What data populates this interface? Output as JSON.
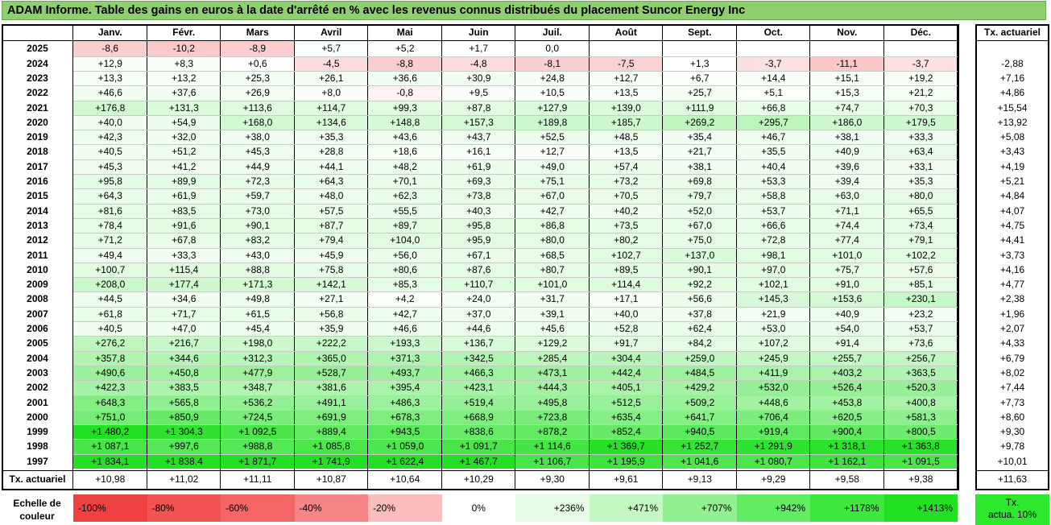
{
  "title": "ADAM Informe. Table des gains en euros à la date d'arrêté en % avec les revenus connus distribués du placement Suncor Energy Inc",
  "months": [
    "Janv.",
    "Févr.",
    "Mars",
    "Avril",
    "Mai",
    "Juin",
    "Juil.",
    "Août",
    "Sept.",
    "Oct.",
    "Nov.",
    "Déc."
  ],
  "tx_header": "Tx. actuariel",
  "rows": [
    {
      "year": "2025",
      "values": [
        "-8,6",
        "-10,2",
        "-8,9",
        "+5,7",
        "+5,2",
        "+1,7",
        "0,0",
        "",
        "",
        "",
        "",
        ""
      ],
      "tx": ""
    },
    {
      "year": "2024",
      "values": [
        "+12,9",
        "+8,3",
        "+0,6",
        "-4,5",
        "-8,8",
        "-4,8",
        "-8,1",
        "-7,5",
        "+1,3",
        "-3,7",
        "-11,1",
        "-3,7"
      ],
      "tx": "-2,88"
    },
    {
      "year": "2023",
      "values": [
        "+13,3",
        "+13,2",
        "+25,3",
        "+26,1",
        "+36,6",
        "+30,9",
        "+24,8",
        "+12,7",
        "+6,7",
        "+14,4",
        "+15,1",
        "+19,2"
      ],
      "tx": "+7,16"
    },
    {
      "year": "2022",
      "values": [
        "+46,6",
        "+37,6",
        "+26,9",
        "+8,0",
        "-0,8",
        "+9,5",
        "+10,5",
        "+13,5",
        "+25,7",
        "+5,1",
        "+15,3",
        "+21,2"
      ],
      "tx": "+4,86"
    },
    {
      "year": "2021",
      "values": [
        "+176,8",
        "+131,3",
        "+113,6",
        "+114,7",
        "+99,3",
        "+87,8",
        "+127,9",
        "+139,0",
        "+111,9",
        "+66,8",
        "+74,7",
        "+70,3"
      ],
      "tx": "+15,54"
    },
    {
      "year": "2020",
      "values": [
        "+40,0",
        "+54,9",
        "+168,0",
        "+134,6",
        "+148,8",
        "+157,3",
        "+189,8",
        "+185,7",
        "+269,2",
        "+295,7",
        "+186,0",
        "+179,5"
      ],
      "tx": "+13,92"
    },
    {
      "year": "2019",
      "values": [
        "+42,3",
        "+32,0",
        "+38,0",
        "+35,3",
        "+43,6",
        "+43,7",
        "+52,5",
        "+48,5",
        "+35,4",
        "+46,7",
        "+38,1",
        "+33,3"
      ],
      "tx": "+5,08"
    },
    {
      "year": "2018",
      "values": [
        "+40,5",
        "+51,2",
        "+45,3",
        "+28,8",
        "+18,6",
        "+16,1",
        "+12,7",
        "+13,5",
        "+21,7",
        "+35,5",
        "+40,9",
        "+63,4"
      ],
      "tx": "+3,43"
    },
    {
      "year": "2017",
      "values": [
        "+45,3",
        "+41,2",
        "+44,9",
        "+44,1",
        "+48,2",
        "+61,9",
        "+49,0",
        "+57,4",
        "+38,1",
        "+40,4",
        "+39,6",
        "+33,1"
      ],
      "tx": "+4,19"
    },
    {
      "year": "2016",
      "values": [
        "+95,8",
        "+89,9",
        "+72,3",
        "+64,3",
        "+70,1",
        "+69,3",
        "+75,1",
        "+73,2",
        "+69,8",
        "+53,3",
        "+39,4",
        "+35,3"
      ],
      "tx": "+5,21"
    },
    {
      "year": "2015",
      "values": [
        "+64,3",
        "+61,9",
        "+59,7",
        "+48,0",
        "+62,3",
        "+73,8",
        "+67,0",
        "+70,5",
        "+79,7",
        "+58,8",
        "+63,0",
        "+80,0"
      ],
      "tx": "+4,84"
    },
    {
      "year": "2014",
      "values": [
        "+81,6",
        "+83,5",
        "+73,0",
        "+57,5",
        "+55,5",
        "+40,3",
        "+42,7",
        "+40,2",
        "+52,0",
        "+53,7",
        "+71,1",
        "+65,5"
      ],
      "tx": "+4,07"
    },
    {
      "year": "2013",
      "values": [
        "+78,4",
        "+91,6",
        "+90,1",
        "+87,7",
        "+89,7",
        "+95,8",
        "+86,8",
        "+73,5",
        "+67,0",
        "+66,6",
        "+74,4",
        "+73,4"
      ],
      "tx": "+4,75"
    },
    {
      "year": "2012",
      "values": [
        "+71,2",
        "+67,8",
        "+83,2",
        "+79,4",
        "+104,0",
        "+95,9",
        "+80,0",
        "+80,2",
        "+75,0",
        "+72,8",
        "+77,4",
        "+79,1"
      ],
      "tx": "+4,41"
    },
    {
      "year": "2011",
      "values": [
        "+49,4",
        "+33,3",
        "+43,0",
        "+45,9",
        "+56,0",
        "+67,1",
        "+68,5",
        "+102,7",
        "+137,0",
        "+98,1",
        "+101,0",
        "+102,2"
      ],
      "tx": "+3,73"
    },
    {
      "year": "2010",
      "values": [
        "+100,7",
        "+115,4",
        "+88,8",
        "+75,8",
        "+80,6",
        "+87,6",
        "+80,7",
        "+89,5",
        "+90,1",
        "+97,0",
        "+75,7",
        "+57,6"
      ],
      "tx": "+4,16"
    },
    {
      "year": "2009",
      "values": [
        "+208,0",
        "+177,4",
        "+171,3",
        "+142,1",
        "+85,3",
        "+110,7",
        "+101,0",
        "+114,4",
        "+92,2",
        "+102,1",
        "+91,0",
        "+85,1"
      ],
      "tx": "+4,77"
    },
    {
      "year": "2008",
      "values": [
        "+44,5",
        "+34,6",
        "+49,8",
        "+27,1",
        "+4,2",
        "+24,0",
        "+31,7",
        "+17,1",
        "+56,6",
        "+145,3",
        "+153,6",
        "+230,1"
      ],
      "tx": "+2,38"
    },
    {
      "year": "2007",
      "values": [
        "+61,8",
        "+71,7",
        "+61,5",
        "+56,8",
        "+42,7",
        "+37,0",
        "+39,1",
        "+40,0",
        "+37,8",
        "+21,9",
        "+40,9",
        "+23,2"
      ],
      "tx": "+1,96"
    },
    {
      "year": "2006",
      "values": [
        "+40,5",
        "+47,0",
        "+45,4",
        "+35,9",
        "+46,6",
        "+44,6",
        "+45,6",
        "+52,8",
        "+62,4",
        "+53,0",
        "+54,0",
        "+53,7"
      ],
      "tx": "+2,07"
    },
    {
      "year": "2005",
      "values": [
        "+276,2",
        "+216,7",
        "+198,0",
        "+222,2",
        "+193,3",
        "+136,7",
        "+129,2",
        "+91,7",
        "+84,2",
        "+107,2",
        "+91,4",
        "+73,6"
      ],
      "tx": "+4,33"
    },
    {
      "year": "2004",
      "values": [
        "+357,8",
        "+344,6",
        "+312,3",
        "+365,0",
        "+371,3",
        "+342,5",
        "+285,4",
        "+304,4",
        "+259,0",
        "+245,9",
        "+255,7",
        "+256,7"
      ],
      "tx": "+6,79"
    },
    {
      "year": "2003",
      "values": [
        "+490,6",
        "+450,8",
        "+477,9",
        "+528,7",
        "+493,7",
        "+466,3",
        "+473,1",
        "+442,4",
        "+484,5",
        "+411,9",
        "+403,2",
        "+363,5"
      ],
      "tx": "+8,02"
    },
    {
      "year": "2002",
      "values": [
        "+422,3",
        "+383,5",
        "+348,7",
        "+381,6",
        "+395,4",
        "+423,1",
        "+444,3",
        "+405,1",
        "+429,2",
        "+532,0",
        "+526,4",
        "+520,3"
      ],
      "tx": "+7,44"
    },
    {
      "year": "2001",
      "values": [
        "+648,3",
        "+565,8",
        "+536,2",
        "+491,1",
        "+486,3",
        "+519,4",
        "+495,8",
        "+512,5",
        "+509,2",
        "+448,6",
        "+453,8",
        "+400,8"
      ],
      "tx": "+7,73"
    },
    {
      "year": "2000",
      "values": [
        "+751,0",
        "+850,9",
        "+724,5",
        "+691,9",
        "+678,3",
        "+668,9",
        "+723,8",
        "+635,4",
        "+641,7",
        "+706,4",
        "+620,5",
        "+581,3"
      ],
      "tx": "+8,60"
    },
    {
      "year": "1999",
      "values": [
        "+1 480,2",
        "+1 304,3",
        "+1 092,5",
        "+889,4",
        "+943,5",
        "+838,6",
        "+878,2",
        "+852,4",
        "+940,5",
        "+919,4",
        "+900,4",
        "+800,5"
      ],
      "tx": "+9,30"
    },
    {
      "year": "1998",
      "values": [
        "+1 087,1",
        "+997,6",
        "+988,8",
        "+1 085,8",
        "+1 059,0",
        "+1 091,7",
        "+1 114,6",
        "+1 369,7",
        "+1 252,7",
        "+1 291,9",
        "+1 318,1",
        "+1 363,8"
      ],
      "tx": "+9,78"
    },
    {
      "year": "1997",
      "values": [
        "+1 834,1",
        "+1 838,4",
        "+1 871,7",
        "+1 741,9",
        "+1 622,4",
        "+1 467,7",
        "+1 106,7",
        "+1 195,9",
        "+1 041,6",
        "+1 080,7",
        "+1 162,1",
        "+1 091,5"
      ],
      "tx": "+10,01"
    }
  ],
  "footer": {
    "label": "Tx. actuariel",
    "values": [
      "+10,98",
      "+11,02",
      "+11,11",
      "+10,87",
      "+10,64",
      "+10,29",
      "+9,30",
      "+9,61",
      "+9,13",
      "+9,29",
      "+9,58",
      "+9,38"
    ],
    "tx": "+11,63"
  },
  "legend": {
    "label_line1": "Echelle de",
    "label_line2": "couleur",
    "items": [
      {
        "text": "-100%",
        "color": "#f04141",
        "align": "left"
      },
      {
        "text": "-80%",
        "color": "#f25252",
        "align": "left"
      },
      {
        "text": "-60%",
        "color": "#f46666",
        "align": "left"
      },
      {
        "text": "-40%",
        "color": "#f78585",
        "align": "left"
      },
      {
        "text": "-20%",
        "color": "#fbbcbc",
        "align": "left"
      },
      {
        "text": "0%",
        "color": "#ffffff",
        "align": "center"
      },
      {
        "text": "+236%",
        "color": "#e6fce6",
        "align": "right"
      },
      {
        "text": "+471%",
        "color": "#c3f8c3",
        "align": "right"
      },
      {
        "text": "+707%",
        "color": "#8ff18f",
        "align": "right"
      },
      {
        "text": "+942%",
        "color": "#62ec62",
        "align": "right"
      },
      {
        "text": "+1178%",
        "color": "#3ee83e",
        "align": "right"
      },
      {
        "text": "+1413%",
        "color": "#22e022",
        "align": "right"
      }
    ],
    "tx_line1": "Tx.",
    "tx_line2": "actua. 10%"
  },
  "colors": {
    "title_bg": "#8fd06e",
    "max_green": "#22e022",
    "max_red": "#f04141"
  }
}
